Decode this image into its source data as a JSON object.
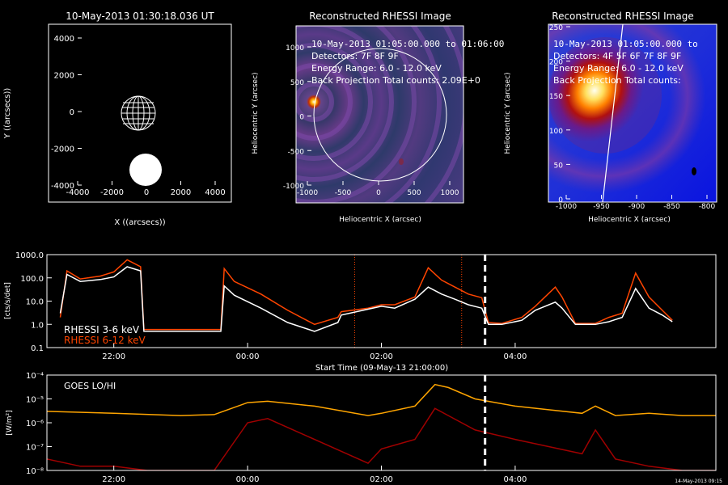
{
  "panel1": {
    "title": "10-May-2013 01:30:18.036 UT",
    "xlabel": "X ((arcsecs))",
    "ylabel": "Y ((arcsecs))",
    "xticks": [
      "-4000",
      "-2000",
      "0",
      "2000",
      "4000"
    ],
    "yticks": [
      "4000",
      "2000",
      "0",
      "-2000",
      "-4000"
    ]
  },
  "panel2": {
    "title": "Reconstructed RHESSI Image",
    "time": "10-May-2013 01:05:00.000 to 01:06:00",
    "detectors": "Detectors: 7F 8F 9F",
    "energy": "Energy Range: 6.0 - 12.0 keV",
    "projection": "Back Projection     Total counts: 2.09E+0",
    "xlabel": "Heliocentric X (arcsec)",
    "ylabel": "Heliocentric Y (arcsec)",
    "xticks": [
      "-1000",
      "-500",
      "0",
      "500",
      "1000"
    ],
    "yticks": [
      "1000",
      "500",
      "0",
      "-500",
      "-1000"
    ]
  },
  "panel3": {
    "title": "Reconstructed RHESSI Image",
    "time": "10-May-2013 01:05:00.000 to",
    "detectors": "Detectors: 4F 5F 6F 7F 8F 9F",
    "energy": "Energy Range: 6.0 - 12.0 keV",
    "projection": "Back Projection     Total counts:",
    "xlabel": "Heliocentric X (arcsec)",
    "ylabel": "Heliocentric Y (arcsec)",
    "xticks": [
      "-1000",
      "-950",
      "-900",
      "-850",
      "-800"
    ],
    "yticks": [
      "250",
      "200",
      "150",
      "100",
      "50",
      "0"
    ]
  },
  "rhessi": {
    "ylabel": "[cts/s/det]",
    "yticks": [
      "1000.0",
      "100.0",
      "10.0",
      "1.0",
      "0.1"
    ],
    "xticks": [
      "22:00",
      "00:00",
      "02:00",
      "04:00"
    ],
    "xlabel": "Start Time (09-May-13 21:00:00)",
    "legend_low": "RHESSI  3-6 keV",
    "legend_high": "RHESSI 6-12 keV"
  },
  "goes": {
    "label": "GOES LO/HI",
    "ylabel": "[W/m²]",
    "yticks": [
      "10⁻⁴",
      "10⁻⁵",
      "10⁻⁶",
      "10⁻⁷",
      "10⁻⁸"
    ],
    "xticks": [
      "22:00",
      "00:00",
      "02:00",
      "04:00"
    ],
    "footer": "14-May-2013 09:15"
  },
  "colors": {
    "rhessi_low": "#ffffff",
    "rhessi_high": "#ff4500",
    "goes_lo": "#ffa500",
    "goes_hi": "#a00000",
    "marker": "#ffffff"
  },
  "chart_data": [
    {
      "type": "line",
      "title": "",
      "xlabel": "Start Time (09-May-13 21:00:00)",
      "ylabel": "[cts/s/det]",
      "yscale": "log",
      "ylim": [
        0.1,
        1000
      ],
      "x_unit": "hours since 09-May-13 21:00:00",
      "series": [
        {
          "name": "RHESSI  3-6 keV",
          "x": [
            0.2,
            0.3,
            0.5,
            0.8,
            1.0,
            1.2,
            1.4,
            1.45,
            2.6,
            2.65,
            2.8,
            3.2,
            3.6,
            4.0,
            4.35,
            4.4,
            4.8,
            5.0,
            5.2,
            5.5,
            5.7,
            5.9,
            6.1,
            6.3,
            6.5,
            6.6,
            6.8,
            7.1,
            7.3,
            7.6,
            7.7,
            7.9,
            8.2,
            8.4,
            8.6,
            8.8,
            9.0,
            9.2,
            9.35
          ],
          "values": [
            3,
            140,
            70,
            85,
            110,
            300,
            200,
            0.5,
            0.5,
            45,
            18,
            5,
            1.2,
            0.5,
            1.2,
            2.5,
            4.5,
            6,
            5,
            12,
            40,
            20,
            12,
            7,
            5,
            1,
            1,
            1.5,
            4,
            9,
            5,
            1,
            1,
            1.3,
            2,
            35,
            5,
            2.5,
            1.3
          ]
        },
        {
          "name": "RHESSI 6-12 keV",
          "x": [
            0.2,
            0.3,
            0.5,
            0.8,
            1.0,
            1.2,
            1.4,
            1.45,
            2.6,
            2.65,
            2.8,
            3.2,
            3.6,
            4.0,
            4.35,
            4.4,
            4.8,
            5.0,
            5.2,
            5.5,
            5.7,
            5.9,
            6.1,
            6.3,
            6.5,
            6.6,
            6.8,
            7.1,
            7.3,
            7.6,
            7.7,
            7.9,
            8.2,
            8.4,
            8.6,
            8.8,
            9.0,
            9.2,
            9.35
          ],
          "values": [
            2,
            200,
            90,
            120,
            180,
            600,
            300,
            0.6,
            0.6,
            250,
            70,
            20,
            4,
            1,
            2,
            3.5,
            5,
            7,
            7,
            15,
            270,
            80,
            40,
            20,
            14,
            1.2,
            1.1,
            2,
            6,
            40,
            15,
            1.1,
            1.1,
            2,
            3,
            160,
            15,
            4,
            1.5
          ]
        }
      ],
      "markers_x": [
        4.6,
        6.2
      ],
      "dashed_marker_x": 6.55
    },
    {
      "type": "line",
      "title": "",
      "ylabel": "[W/m²]",
      "yscale": "log",
      "ylim": [
        1e-08,
        0.0001
      ],
      "x_unit": "hours since 09-May-13 21:00:00",
      "series": [
        {
          "name": "GOES LO",
          "x": [
            0.0,
            1.0,
            2.0,
            2.5,
            3.0,
            3.3,
            4.0,
            4.8,
            5.0,
            5.5,
            5.8,
            6.0,
            6.4,
            7.0,
            7.5,
            8.0,
            8.2,
            8.5,
            9.0,
            9.5,
            10.0
          ],
          "values": [
            3e-06,
            2.5e-06,
            2e-06,
            2.2e-06,
            7e-06,
            8e-06,
            5e-06,
            2e-06,
            2.5e-06,
            5e-06,
            4e-05,
            3e-05,
            1e-05,
            5e-06,
            3.5e-06,
            2.5e-06,
            5e-06,
            2e-06,
            2.5e-06,
            2e-06,
            2e-06
          ]
        },
        {
          "name": "GOES HI",
          "x": [
            0.0,
            0.5,
            1.0,
            1.5,
            2.0,
            2.5,
            3.0,
            3.3,
            4.0,
            4.8,
            5.0,
            5.5,
            5.8,
            6.0,
            6.4,
            7.0,
            7.5,
            8.0,
            8.2,
            8.5,
            9.0,
            9.5,
            10.0
          ],
          "values": [
            3e-08,
            1.5e-08,
            1.5e-08,
            1e-08,
            1e-08,
            1e-08,
            1e-06,
            1.5e-06,
            2e-07,
            2e-08,
            8e-08,
            2e-07,
            4e-06,
            2e-06,
            5e-07,
            2e-07,
            1e-07,
            5e-08,
            5e-07,
            3e-08,
            1.5e-08,
            1e-08,
            1e-08
          ]
        }
      ],
      "dashed_marker_x": 6.55
    }
  ]
}
